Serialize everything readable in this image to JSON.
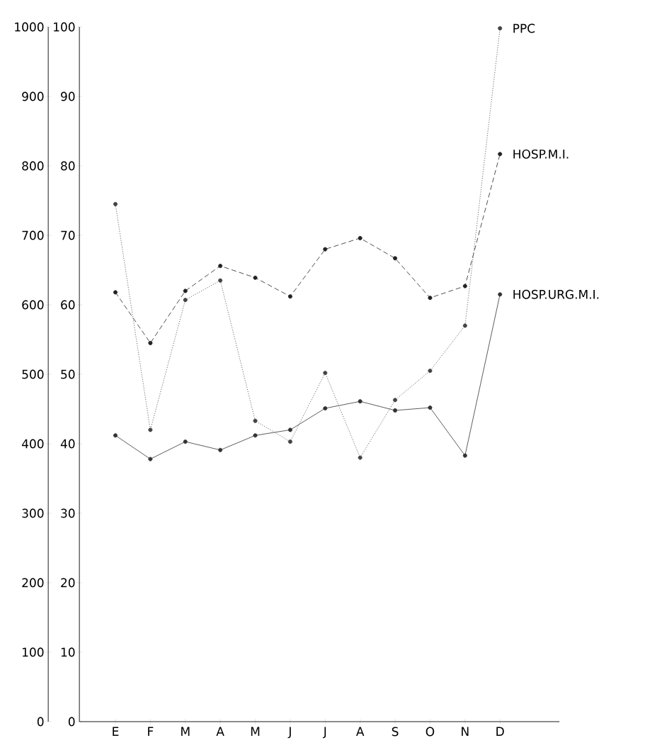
{
  "chart_data": {
    "type": "line",
    "categories": [
      "E",
      "F",
      "M",
      "A",
      "M",
      "J",
      "J",
      "A",
      "S",
      "O",
      "N",
      "D"
    ],
    "series": [
      {
        "name": "PPC",
        "color": "#444444",
        "line_style": "dotted",
        "values": [
          745,
          420,
          607,
          635,
          433,
          403,
          502,
          380,
          463,
          505,
          570,
          998
        ]
      },
      {
        "name": "HOSP.M.I.",
        "color": "#222222",
        "line_style": "dashed",
        "axis": "y2",
        "values": [
          61.8,
          54.5,
          62,
          65.6,
          63.9,
          61.2,
          68,
          69.6,
          66.7,
          61,
          62.7,
          81.7
        ]
      },
      {
        "name": "HOSP.URG.M.I.",
        "color": "#333333",
        "line_style": "solid",
        "axis": "y2",
        "values": [
          41.2,
          37.8,
          40.3,
          39.1,
          41.2,
          42,
          45.1,
          46.1,
          44.8,
          45.2,
          38.3,
          61.5
        ]
      }
    ],
    "ylim": [
      0,
      1000
    ],
    "yticks": [
      0,
      100,
      200,
      300,
      400,
      500,
      600,
      700,
      800,
      900,
      1000
    ],
    "y2lim": [
      0,
      100
    ],
    "y2ticks": [
      0,
      10,
      20,
      30,
      40,
      50,
      60,
      70,
      80,
      90,
      100
    ],
    "marker": "circle",
    "grid": false,
    "legend": false
  }
}
